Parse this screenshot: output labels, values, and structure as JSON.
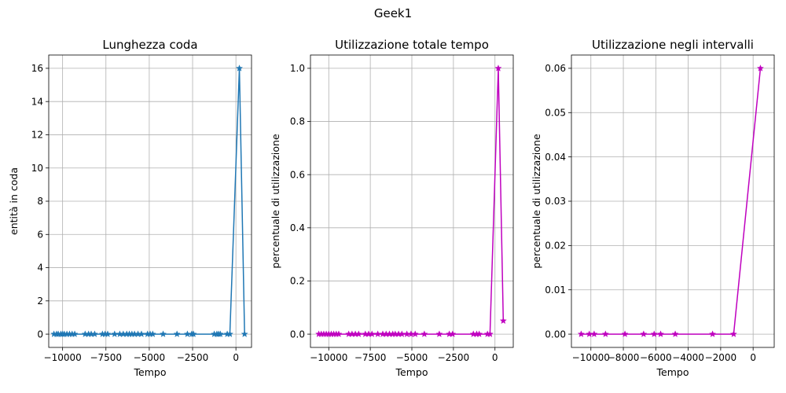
{
  "figure": {
    "title": "Geek1"
  },
  "chart_data": [
    {
      "type": "line",
      "title": "Lunghezza coda",
      "xlabel": "Tempo",
      "ylabel": "entità in coda",
      "xlim": [
        -10800,
        900
      ],
      "ylim": [
        -0.8,
        16.8
      ],
      "xticks": [
        -10000,
        -7500,
        -5000,
        -2500,
        0
      ],
      "xtick_labels": [
        "−10000",
        "−7500",
        "−5000",
        "−2500",
        "0"
      ],
      "yticks": [
        0,
        2,
        4,
        6,
        8,
        10,
        12,
        14,
        16
      ],
      "ytick_labels": [
        "0",
        "2",
        "4",
        "6",
        "8",
        "10",
        "12",
        "14",
        "16"
      ],
      "grid": true,
      "marker": "star",
      "color": "#1f77b4",
      "series": [
        {
          "x": [
            -10500,
            -10350,
            -10250,
            -10100,
            -10000,
            -9900,
            -9750,
            -9600,
            -9450,
            -9300,
            -8700,
            -8500,
            -8350,
            -8150,
            -7700,
            -7550,
            -7400,
            -7000,
            -6700,
            -6500,
            -6300,
            -6150,
            -6000,
            -5850,
            -5650,
            -5450,
            -5100,
            -4950,
            -4800,
            -4200,
            -3400,
            -2800,
            -2550,
            -2450,
            -1250,
            -1100,
            -1000,
            -900,
            -500,
            -350,
            200,
            500
          ],
          "y": [
            0,
            0,
            0,
            0,
            0,
            0,
            0,
            0,
            0,
            0,
            0,
            0,
            0,
            0,
            0,
            0,
            0,
            0,
            0,
            0,
            0,
            0,
            0,
            0,
            0,
            0,
            0,
            0,
            0,
            0,
            0,
            0,
            0,
            0,
            0,
            0,
            0,
            0,
            0,
            0,
            16,
            0
          ]
        }
      ]
    },
    {
      "type": "line",
      "title": "Utilizzazione totale tempo",
      "xlabel": "Tempo",
      "ylabel": "percentuale di utilizzazione",
      "xlim": [
        -11100,
        1100
      ],
      "ylim": [
        -0.05,
        1.05
      ],
      "xticks": [
        -10000,
        -7500,
        -5000,
        -2500,
        0
      ],
      "xtick_labels": [
        "−10000",
        "−7500",
        "−5000",
        "−2500",
        "0"
      ],
      "yticks": [
        0.0,
        0.2,
        0.4,
        0.6,
        0.8,
        1.0
      ],
      "ytick_labels": [
        "0.0",
        "0.2",
        "0.4",
        "0.6",
        "0.8",
        "1.0"
      ],
      "grid": true,
      "marker": "star",
      "color": "#bf00bf",
      "series": [
        {
          "x": [
            -10600,
            -10450,
            -10300,
            -10150,
            -10000,
            -9850,
            -9700,
            -9550,
            -9400,
            -8800,
            -8600,
            -8400,
            -8200,
            -7800,
            -7600,
            -7400,
            -7050,
            -6750,
            -6550,
            -6350,
            -6150,
            -6000,
            -5800,
            -5600,
            -5300,
            -5050,
            -4800,
            -4250,
            -3350,
            -2750,
            -2550,
            -1300,
            -1100,
            -950,
            -450,
            -300,
            200,
            500
          ],
          "y": [
            0,
            0,
            0,
            0,
            0,
            0,
            0,
            0,
            0,
            0,
            0,
            0,
            0,
            0,
            0,
            0,
            0,
            0,
            0,
            0,
            0,
            0,
            0,
            0,
            0,
            0,
            0,
            0,
            0,
            0,
            0,
            0,
            0,
            0,
            0,
            0,
            1.0,
            0.05
          ]
        }
      ]
    },
    {
      "type": "line",
      "title": "Utilizzazione negli intervalli",
      "xlabel": "Tempo",
      "ylabel": "percentuale di utilizzazione",
      "xlim": [
        -11200,
        1300
      ],
      "ylim": [
        -0.003,
        0.063
      ],
      "xticks": [
        -10000,
        -8000,
        -6000,
        -4000,
        -2000,
        0
      ],
      "xtick_labels": [
        "−10000",
        "−8000",
        "−6000",
        "−4000",
        "−2000",
        "0"
      ],
      "yticks": [
        0.0,
        0.01,
        0.02,
        0.03,
        0.04,
        0.05,
        0.06
      ],
      "ytick_labels": [
        "0.00",
        "0.01",
        "0.02",
        "0.03",
        "0.04",
        "0.05",
        "0.06"
      ],
      "grid": true,
      "marker": "star",
      "color": "#bf00bf",
      "series": [
        {
          "x": [
            -10600,
            -10100,
            -9800,
            -9100,
            -7900,
            -6750,
            -6100,
            -5700,
            -4800,
            -2500,
            -1200,
            450
          ],
          "y": [
            0,
            0,
            0,
            0,
            0,
            0,
            0,
            0,
            0,
            0,
            0,
            0.06
          ]
        }
      ]
    }
  ]
}
